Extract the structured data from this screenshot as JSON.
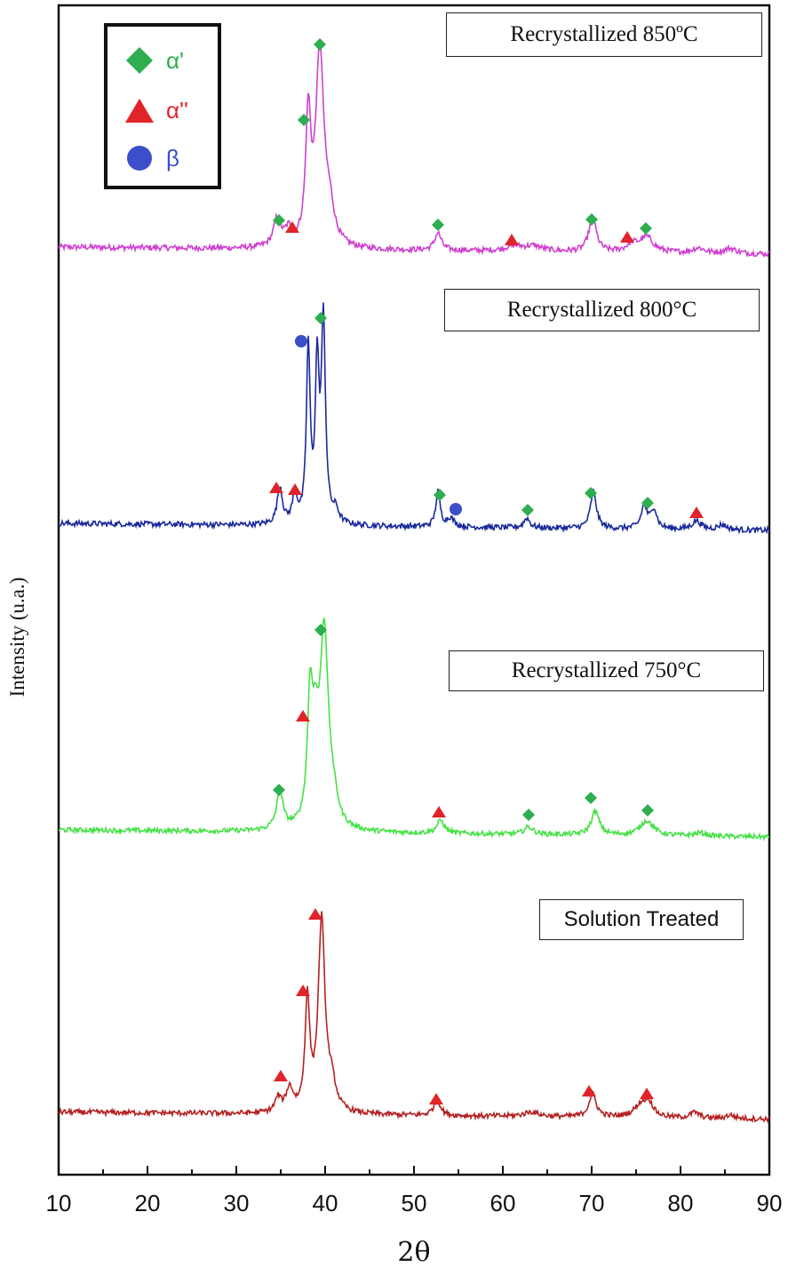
{
  "chart_data": {
    "type": "line",
    "xlabel": "2θ",
    "ylabel": "Intensity (u.a.)",
    "xlim": [
      10,
      90
    ],
    "xticks": [
      10,
      20,
      30,
      40,
      50,
      60,
      70,
      80,
      90
    ],
    "grid": false,
    "legend": {
      "placement": "top-left",
      "entries": [
        {
          "label": "α'",
          "marker": "diamond",
          "color": "#2eae4f"
        },
        {
          "label": "α''",
          "marker": "triangle",
          "color": "#e0242a"
        },
        {
          "label": "β",
          "marker": "circle",
          "color": "#3a4fc9"
        }
      ]
    },
    "series": [
      {
        "label": "Recrystallized 850ºC",
        "color": "#d040d0",
        "baseline": 0.05,
        "peaks": [
          [
            34.6,
            0.22,
            0.5
          ],
          [
            35.9,
            0.12,
            0.5
          ],
          [
            38.1,
            1.0,
            0.35
          ],
          [
            39.4,
            1.55,
            0.55
          ],
          [
            40.5,
            0.25,
            0.6
          ],
          [
            52.7,
            0.14,
            0.45
          ],
          [
            61.3,
            0.04,
            1.2
          ],
          [
            63.5,
            0.04,
            1.2
          ],
          [
            70.1,
            0.28,
            0.5
          ],
          [
            74.6,
            0.06,
            0.8
          ],
          [
            76.2,
            0.12,
            0.9
          ],
          [
            82.0,
            0.04,
            0.8
          ],
          [
            85.6,
            0.04,
            0.8
          ]
        ],
        "markers": [
          {
            "x": 34.8,
            "phase": "α'"
          },
          {
            "x": 36.3,
            "phase": "α''"
          },
          {
            "x": 37.6,
            "phase": "α'"
          },
          {
            "x": 39.4,
            "phase": "α'"
          },
          {
            "x": 52.7,
            "phase": "α'"
          },
          {
            "x": 61.0,
            "phase": "α''"
          },
          {
            "x": 70.0,
            "phase": "α'"
          },
          {
            "x": 74.0,
            "phase": "α''"
          },
          {
            "x": 76.1,
            "phase": "α'"
          }
        ]
      },
      {
        "label": "Recrystallized 800°C",
        "color": "#1a2a9c",
        "baseline": 0.05,
        "peaks": [
          [
            34.9,
            0.3,
            0.35
          ],
          [
            36.6,
            0.22,
            0.35
          ],
          [
            38.1,
            1.4,
            0.25
          ],
          [
            39.1,
            1.22,
            0.25
          ],
          [
            39.8,
            1.6,
            0.28
          ],
          [
            41.2,
            0.1,
            0.4
          ],
          [
            52.7,
            0.28,
            0.3
          ],
          [
            54.1,
            0.07,
            0.5
          ],
          [
            62.7,
            0.08,
            0.4
          ],
          [
            70.2,
            0.3,
            0.4
          ],
          [
            75.9,
            0.18,
            0.4
          ],
          [
            77.0,
            0.16,
            0.4
          ],
          [
            81.8,
            0.07,
            0.6
          ],
          [
            84.7,
            0.04,
            0.6
          ]
        ],
        "markers": [
          {
            "x": 34.5,
            "phase": "α''"
          },
          {
            "x": 36.6,
            "phase": "α''"
          },
          {
            "x": 37.3,
            "phase": "β"
          },
          {
            "x": 39.5,
            "phase": "α'"
          },
          {
            "x": 52.9,
            "phase": "α'"
          },
          {
            "x": 54.7,
            "phase": "β"
          },
          {
            "x": 62.8,
            "phase": "α'"
          },
          {
            "x": 69.9,
            "phase": "α'"
          },
          {
            "x": 76.3,
            "phase": "α'"
          },
          {
            "x": 81.8,
            "phase": "α''"
          }
        ]
      },
      {
        "label": "Recrystallized 750°C",
        "color": "#44e244",
        "baseline": 0.05,
        "peaks": [
          [
            34.9,
            0.35,
            0.45
          ],
          [
            38.3,
            1.05,
            0.35
          ],
          [
            38.9,
            0.7,
            0.5
          ],
          [
            39.9,
            1.78,
            0.55
          ],
          [
            40.9,
            0.2,
            0.6
          ],
          [
            53.0,
            0.12,
            0.5
          ],
          [
            62.9,
            0.07,
            0.6
          ],
          [
            70.4,
            0.22,
            0.55
          ],
          [
            76.2,
            0.14,
            0.9
          ],
          [
            82.2,
            0.03,
            0.8
          ]
        ],
        "markers": [
          {
            "x": 34.8,
            "phase": "α'"
          },
          {
            "x": 37.5,
            "phase": "α''"
          },
          {
            "x": 39.5,
            "phase": "α'"
          },
          {
            "x": 52.8,
            "phase": "α''"
          },
          {
            "x": 62.9,
            "phase": "α'"
          },
          {
            "x": 69.9,
            "phase": "α'"
          },
          {
            "x": 76.3,
            "phase": "α'"
          }
        ]
      },
      {
        "label": "Solution Treated",
        "color": "#b42222",
        "baseline": 0.05,
        "peaks": [
          [
            34.7,
            0.12,
            0.4
          ],
          [
            36.0,
            0.2,
            0.5
          ],
          [
            38.0,
            0.95,
            0.32
          ],
          [
            39.6,
            1.65,
            0.45
          ],
          [
            40.7,
            0.22,
            0.6
          ],
          [
            52.6,
            0.14,
            0.45
          ],
          [
            63.2,
            0.04,
            1.0
          ],
          [
            70.1,
            0.2,
            0.5
          ],
          [
            75.5,
            0.1,
            0.9
          ],
          [
            76.4,
            0.12,
            0.6
          ],
          [
            81.6,
            0.05,
            0.6
          ],
          [
            85.6,
            0.03,
            0.6
          ]
        ],
        "markers": [
          {
            "x": 35.0,
            "phase": "α''"
          },
          {
            "x": 37.5,
            "phase": "α''"
          },
          {
            "x": 38.9,
            "phase": "α''"
          },
          {
            "x": 52.5,
            "phase": "α''"
          },
          {
            "x": 69.7,
            "phase": "α''"
          },
          {
            "x": 76.2,
            "phase": "α''"
          }
        ]
      }
    ]
  }
}
